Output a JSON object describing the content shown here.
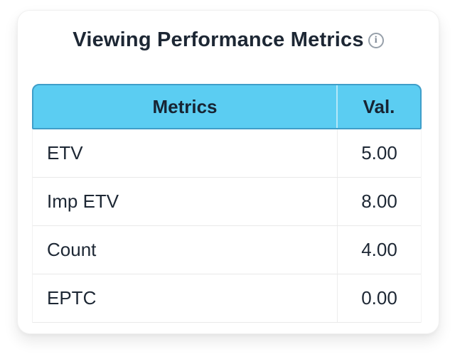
{
  "card": {
    "title": "Viewing Performance Metrics",
    "info_icon_glyph": "i"
  },
  "table": {
    "columns": [
      {
        "label": "Metrics"
      },
      {
        "label": "Val."
      }
    ],
    "rows": [
      {
        "metric": "ETV",
        "value": "5.00"
      },
      {
        "metric": "Imp ETV",
        "value": "8.00"
      },
      {
        "metric": "Count",
        "value": "4.00"
      },
      {
        "metric": "EPTC",
        "value": "0.00"
      }
    ]
  },
  "colors": {
    "header_background": "#5bcdf2",
    "header_border": "#3f9ec9",
    "title_text": "#1d2734",
    "row_text": "#1d2734",
    "row_divider": "#e9e9e9",
    "info_icon": "#7d8794",
    "card_background": "#ffffff"
  }
}
